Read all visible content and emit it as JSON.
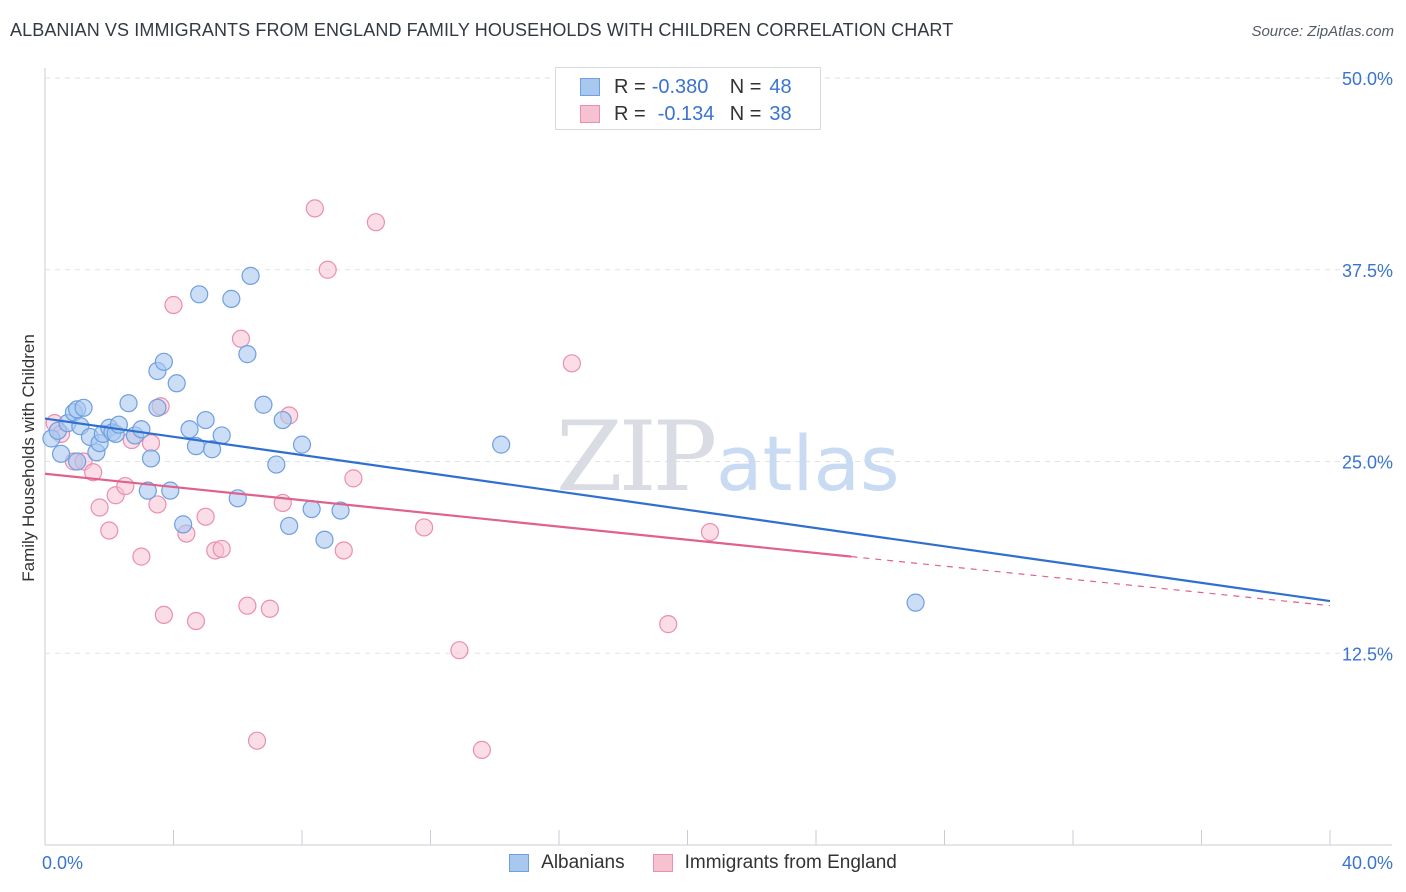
{
  "title": "ALBANIAN VS IMMIGRANTS FROM ENGLAND FAMILY HOUSEHOLDS WITH CHILDREN CORRELATION CHART",
  "source": "Source: ZipAtlas.com",
  "watermark": {
    "zip": "ZIP",
    "atlas": "atlas"
  },
  "legend": {
    "r_label": "R =",
    "n_label": "N =",
    "series": [
      {
        "r": "-0.380",
        "n": "48"
      },
      {
        "r": "-0.134",
        "n": "38"
      }
    ]
  },
  "colors": {
    "blue_fill": "#a9c8f0",
    "blue_stroke": "#6f9fe0",
    "blue_line": "#2f6fd0",
    "pink_fill": "#f6c1d1",
    "pink_stroke": "#ea8fae",
    "pink_line": "#e0628c",
    "axis_text": "#3a74d0",
    "grid": "#dfe2e6"
  },
  "chart_data": {
    "type": "scatter",
    "title": "ALBANIAN VS IMMIGRANTS FROM ENGLAND FAMILY HOUSEHOLDS WITH CHILDREN CORRELATION CHART",
    "xlabel": "",
    "ylabel": "Family Households with Children",
    "xlim": [
      0,
      40
    ],
    "ylim": [
      0,
      50
    ],
    "x_tick_labels": [
      "0.0%",
      "40.0%"
    ],
    "y_ticks": [
      12.5,
      25.0,
      37.5,
      50.0
    ],
    "y_tick_labels": [
      "12.5%",
      "25.0%",
      "37.5%",
      "50.0%"
    ],
    "series": [
      {
        "name": "Albanians",
        "r": -0.38,
        "n": 48,
        "points": [
          [
            0.2,
            26.5
          ],
          [
            0.4,
            27.0
          ],
          [
            0.5,
            25.5
          ],
          [
            0.7,
            27.5
          ],
          [
            0.9,
            28.2
          ],
          [
            1.0,
            28.4
          ],
          [
            1.1,
            27.3
          ],
          [
            1.2,
            28.5
          ],
          [
            1.4,
            26.6
          ],
          [
            1.6,
            25.6
          ],
          [
            1.7,
            26.2
          ],
          [
            1.8,
            26.8
          ],
          [
            2.0,
            27.2
          ],
          [
            2.1,
            26.9
          ],
          [
            2.2,
            26.8
          ],
          [
            2.3,
            27.4
          ],
          [
            2.6,
            28.8
          ],
          [
            2.8,
            26.7
          ],
          [
            3.0,
            27.1
          ],
          [
            3.2,
            23.1
          ],
          [
            3.3,
            25.2
          ],
          [
            3.5,
            28.5
          ],
          [
            3.5,
            30.9
          ],
          [
            3.7,
            31.5
          ],
          [
            3.9,
            23.1
          ],
          [
            4.1,
            30.1
          ],
          [
            4.3,
            20.9
          ],
          [
            4.5,
            27.1
          ],
          [
            4.7,
            26.0
          ],
          [
            4.8,
            35.9
          ],
          [
            5.0,
            27.7
          ],
          [
            5.2,
            25.8
          ],
          [
            5.5,
            26.7
          ],
          [
            5.8,
            35.6
          ],
          [
            6.0,
            22.6
          ],
          [
            6.3,
            32.0
          ],
          [
            6.4,
            37.1
          ],
          [
            6.8,
            28.7
          ],
          [
            7.2,
            24.8
          ],
          [
            7.4,
            27.7
          ],
          [
            7.6,
            20.8
          ],
          [
            8.0,
            26.1
          ],
          [
            8.3,
            21.9
          ],
          [
            8.7,
            19.9
          ],
          [
            9.2,
            21.8
          ],
          [
            14.2,
            26.1
          ],
          [
            27.1,
            15.8
          ],
          [
            1.0,
            25.0
          ]
        ]
      },
      {
        "name": "Immigrants from England",
        "r": -0.134,
        "n": 38,
        "points": [
          [
            0.3,
            27.5
          ],
          [
            0.5,
            26.8
          ],
          [
            0.9,
            25.0
          ],
          [
            1.2,
            25.0
          ],
          [
            1.5,
            24.3
          ],
          [
            1.7,
            22.0
          ],
          [
            2.0,
            20.5
          ],
          [
            2.2,
            22.8
          ],
          [
            2.5,
            23.4
          ],
          [
            2.7,
            26.4
          ],
          [
            3.0,
            18.8
          ],
          [
            3.3,
            26.2
          ],
          [
            3.5,
            22.2
          ],
          [
            3.6,
            28.6
          ],
          [
            3.7,
            15.0
          ],
          [
            4.0,
            35.2
          ],
          [
            4.4,
            20.3
          ],
          [
            4.7,
            14.6
          ],
          [
            5.0,
            21.4
          ],
          [
            5.3,
            19.2
          ],
          [
            5.5,
            19.3
          ],
          [
            6.1,
            33.0
          ],
          [
            6.3,
            15.6
          ],
          [
            6.6,
            6.8
          ],
          [
            7.0,
            15.4
          ],
          [
            7.4,
            22.3
          ],
          [
            7.6,
            28.0
          ],
          [
            8.4,
            41.5
          ],
          [
            8.8,
            37.5
          ],
          [
            9.3,
            19.2
          ],
          [
            9.6,
            23.9
          ],
          [
            10.3,
            40.6
          ],
          [
            11.8,
            20.7
          ],
          [
            12.9,
            12.7
          ],
          [
            13.6,
            6.2
          ],
          [
            16.4,
            31.4
          ],
          [
            19.4,
            14.4
          ],
          [
            20.7,
            20.4
          ]
        ]
      }
    ],
    "trendlines": [
      {
        "series": "Albanians",
        "x": [
          0,
          40
        ],
        "y": [
          27.8,
          15.9
        ],
        "style": "solid"
      },
      {
        "series": "Immigrants from England",
        "x": [
          0,
          25.1
        ],
        "y": [
          24.2,
          18.8
        ],
        "style": "solid"
      },
      {
        "series": "Immigrants from England",
        "x": [
          25.1,
          40
        ],
        "y": [
          18.8,
          15.6
        ],
        "style": "dashed"
      }
    ]
  }
}
